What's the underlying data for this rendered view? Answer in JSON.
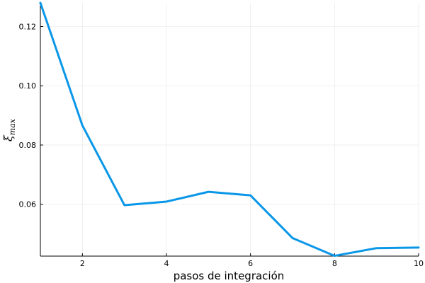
{
  "chart_data": {
    "type": "line",
    "xlabel": "pasos de integración",
    "ylabel_main": "ξ",
    "ylabel_sub": "max",
    "xlim": [
      1,
      10
    ],
    "ylim": [
      0.0425,
      0.128
    ],
    "xticks": [
      2,
      4,
      6,
      8,
      10
    ],
    "yticks": [
      0.06,
      0.08,
      0.1,
      0.12
    ],
    "ytick_labels": [
      "0.06",
      "0.08",
      "0.10",
      "0.12"
    ],
    "grid": true,
    "legend": "none",
    "color": "#0a97e8",
    "series": [
      {
        "x": [
          1,
          2,
          3,
          4,
          5,
          6,
          7,
          8,
          9,
          10
        ],
        "values": [
          0.128,
          0.0866,
          0.0597,
          0.0609,
          0.0642,
          0.063,
          0.0486,
          0.0426,
          0.0452,
          0.0454
        ]
      }
    ]
  }
}
